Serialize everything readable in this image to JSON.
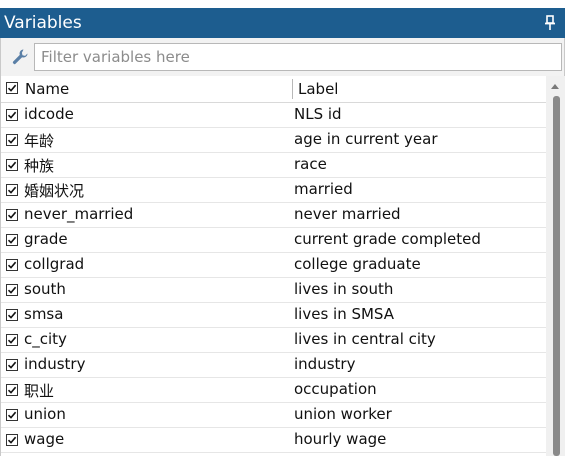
{
  "panel": {
    "title": "Variables",
    "pin_icon": "pin-icon"
  },
  "filter": {
    "placeholder": "Filter variables here",
    "value": "",
    "icon": "wrench-icon"
  },
  "columns": {
    "select_all": true,
    "name": "Name",
    "label": "Label"
  },
  "variables": [
    {
      "name": "idcode",
      "label": "NLS id",
      "checked": true
    },
    {
      "name": "年龄",
      "label": "age in current year",
      "checked": true
    },
    {
      "name": "种族",
      "label": "race",
      "checked": true
    },
    {
      "name": "婚姻状况",
      "label": "married",
      "checked": true
    },
    {
      "name": "never_married",
      "label": "never married",
      "checked": true
    },
    {
      "name": "grade",
      "label": "current grade completed",
      "checked": true
    },
    {
      "name": "collgrad",
      "label": "college graduate",
      "checked": true
    },
    {
      "name": "south",
      "label": "lives in south",
      "checked": true
    },
    {
      "name": "smsa",
      "label": "lives in SMSA",
      "checked": true
    },
    {
      "name": "c_city",
      "label": "lives in central city",
      "checked": true
    },
    {
      "name": "industry",
      "label": "industry",
      "checked": true
    },
    {
      "name": "职业",
      "label": "occupation",
      "checked": true
    },
    {
      "name": "union",
      "label": "union worker",
      "checked": true
    },
    {
      "name": "wage",
      "label": "hourly wage",
      "checked": true
    }
  ],
  "colors": {
    "title_bar": "#1d5d8f",
    "title_text": "#ffffff",
    "filter_bar": "#f2f2f2",
    "scroll_thumb": "#8a8a8a"
  }
}
